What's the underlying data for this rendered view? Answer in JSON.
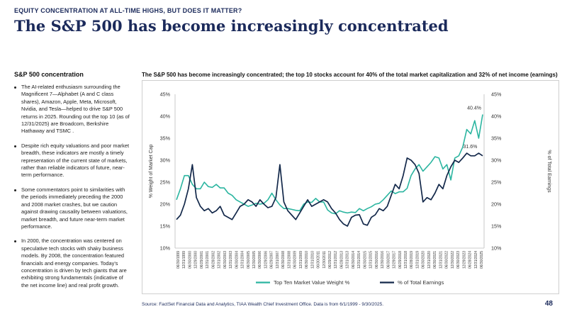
{
  "header": {
    "eyebrow": "EQUITY CONCENTRATION AT ALL-TIME HIGHS, BUT DOES IT MATTER?",
    "title": "The S&P 500 has become increasingly concentrated"
  },
  "sidebar": {
    "heading": "S&P 500 concentration",
    "bullets": [
      "The AI-related enthusiasm surrounding the Magnificent 7—Alphabet (A and C class shares), Amazon, Apple, Meta, Microsoft, Nvidia, and Tesla—helped to drive S&P 500 returns in 2025. Rounding out the top 10 (as of 12/31/2025) are Broadcom, Berkshire Hathaway and TSMC .",
      "Despite rich equity valuations and poor market breadth, these indicators are mostly a timely representation of the current state of markets, rather than reliable indicators of future, near-term performance.",
      "Some commentators point to similarities with the periods immediately preceding the 2000 and 2008 market crashes, but we caution against drawing causality between valuations, market breadth, and future near-term market performance.",
      "In 2000, the concentration was centered on speculative tech stocks with shaky business models. By 2008, the concentration featured financials and energy companies. Today's concentration is driven by tech giants that are exhibiting strong fundamentals (indicative of the net income line) and real profit growth."
    ]
  },
  "chart_title": "The S&P 500 has become increasingly concentrated; the top 10 stocks account for 40% of the total market capitalization and 32% of net income (earnings)",
  "footer": {
    "source": "Source: FactSet Financial Data and Analytics, TIAA Wealth Chief Investment Office. Data is from 6/1/1999 - 9/30/2025.",
    "page_number": "48"
  },
  "chart_data": {
    "type": "line",
    "ylabel": "% Weight of Market Cap",
    "y2label": "% of Total Earnings",
    "ylim": [
      10,
      45
    ],
    "y2lim": [
      10,
      45
    ],
    "yticks": [
      "10%",
      "15%",
      "20%",
      "25%",
      "30%",
      "35%",
      "40%",
      "45%"
    ],
    "y2ticks": [
      "10%",
      "15%",
      "20%",
      "25%",
      "30%",
      "35%",
      "40%",
      "45%"
    ],
    "grid": false,
    "legend_position": "bottom",
    "tick_labels": [
      "06/30/1999",
      "12/31/1999",
      "06/30/2000",
      "12/29/2000",
      "06/29/2001",
      "12/31/2001",
      "06/28/2002",
      "12/31/2002",
      "06/30/2003",
      "12/31/2003",
      "06/30/2004",
      "12/31/2004",
      "06/30/2005",
      "12/30/2005",
      "06/30/2006",
      "12/29/2006",
      "06/29/2007",
      "12/31/2007",
      "06/30/2008",
      "12/31/2008",
      "06/30/2009",
      "12/31/2009",
      "06/30/2010",
      "12/31/2010",
      "06/30/2011",
      "12/30/2011",
      "06/29/2012",
      "12/31/2012",
      "06/28/2013",
      "12/31/2013",
      "06/30/2014",
      "12/31/2014",
      "06/30/2015",
      "12/31/2015",
      "06/30/2016",
      "12/30/2016",
      "06/30/2017",
      "12/29/2017",
      "06/29/2018",
      "12/31/2018",
      "06/28/2019",
      "12/31/2019",
      "06/30/2020",
      "12/31/2020",
      "06/30/2021",
      "12/31/2021",
      "06/30/2022",
      "12/30/2022",
      "06/30/2023",
      "12/29/2023",
      "06/28/2024",
      "12/31/2024",
      "06/30/2025"
    ],
    "series": [
      {
        "name": "Top Ten Market Value Weight %",
        "color": "#2bb5a0",
        "axis": "left",
        "values": [
          21.0,
          23.5,
          26.5,
          26.5,
          24.5,
          23.5,
          23.5,
          25.0,
          24.0,
          23.8,
          24.5,
          23.7,
          23.7,
          22.5,
          22.0,
          21.0,
          20.5,
          20.0,
          19.5,
          19.8,
          20.2,
          20.0,
          20.2,
          21.0,
          22.5,
          21.0,
          19.8,
          19.0,
          19.0,
          18.8,
          18.6,
          18.5,
          20.0,
          20.5,
          20.4,
          21.3,
          20.5,
          20.5,
          18.7,
          18.0,
          17.8,
          18.5,
          18.2,
          18.0,
          18.2,
          18.1,
          19.0,
          18.5,
          19.0,
          19.4,
          20.0,
          20.2,
          21.0,
          22.0,
          23.0,
          22.4,
          22.8,
          22.8,
          23.6,
          26.5,
          28.0,
          29.0,
          27.5,
          28.5,
          29.5,
          30.8,
          30.5,
          28.0,
          29.0,
          25.5,
          30.5,
          31.0,
          33.0,
          37.0,
          36.0,
          39.0,
          35.0,
          40.4
        ]
      },
      {
        "name": "% of Total Earnings",
        "color": "#13284a",
        "axis": "right",
        "values": [
          16.5,
          17.5,
          20.0,
          23.5,
          29.0,
          21.5,
          19.5,
          18.5,
          19.0,
          18.0,
          18.5,
          19.5,
          17.5,
          17.0,
          16.5,
          18.0,
          19.5,
          20.0,
          21.0,
          20.5,
          19.5,
          21.0,
          20.0,
          19.2,
          19.5,
          21.5,
          29.0,
          20.5,
          18.5,
          17.5,
          16.5,
          18.0,
          19.5,
          21.0,
          19.5,
          20.0,
          20.5,
          21.0,
          20.5,
          19.0,
          18.0,
          16.5,
          15.5,
          15.0,
          17.0,
          17.5,
          17.6,
          15.5,
          15.2,
          17.0,
          17.6,
          19.0,
          18.5,
          19.5,
          22.0,
          24.5,
          23.5,
          26.5,
          30.5,
          30.0,
          29.0,
          27.0,
          20.5,
          21.5,
          21.0,
          22.5,
          24.5,
          23.5,
          26.5,
          28.5,
          30.0,
          29.5,
          30.5,
          31.6,
          31.0,
          31.0,
          31.6,
          31.0
        ]
      }
    ],
    "annotations": [
      {
        "text": "40.4%",
        "series": 0,
        "index": 77
      },
      {
        "text": "31.6%",
        "series": 1,
        "index": 76
      }
    ]
  }
}
